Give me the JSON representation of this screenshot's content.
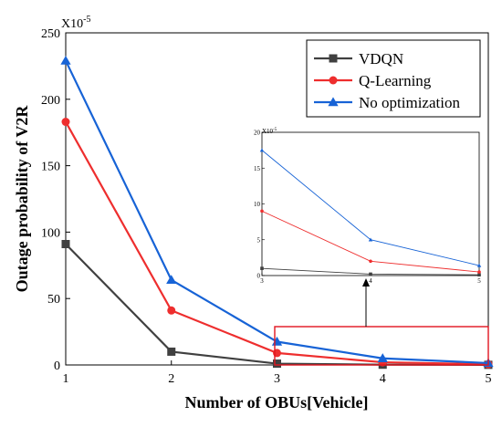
{
  "chart_data": {
    "type": "line",
    "xlabel": "Number of OBUs[Vehicle]",
    "ylabel": "Outage probability of V2R",
    "scale_label": "X10",
    "scale_exp": "-5",
    "x": [
      1,
      2,
      3,
      4,
      5
    ],
    "xlim": [
      1,
      5
    ],
    "ylim": [
      0,
      250
    ],
    "xticks": [
      "1",
      "2",
      "3",
      "4",
      "5"
    ],
    "yticks": [
      "0",
      "50",
      "100",
      "150",
      "200",
      "250"
    ],
    "legend_position": "top-right",
    "series": [
      {
        "name": "VDQN",
        "values": [
          91,
          10,
          1,
          0.2,
          0.1
        ],
        "color": "#404040",
        "marker": "square"
      },
      {
        "name": "Q-Learning",
        "values": [
          183,
          41,
          9,
          2,
          0.5
        ],
        "color": "#ee2e2e",
        "marker": "circle"
      },
      {
        "name": "No optimization",
        "values": [
          229,
          64,
          17.5,
          5,
          1.4
        ],
        "color": "#1763d6",
        "marker": "triangle"
      }
    ],
    "inset": {
      "xlim": [
        3,
        5
      ],
      "ylim": [
        0,
        20
      ],
      "xticks": [
        "3",
        "4",
        "5"
      ],
      "yticks": [
        "0",
        "5",
        "10",
        "15",
        "20"
      ],
      "scale_label": "X10",
      "scale_exp": "-5",
      "highlight_color": "#e0141e"
    }
  }
}
